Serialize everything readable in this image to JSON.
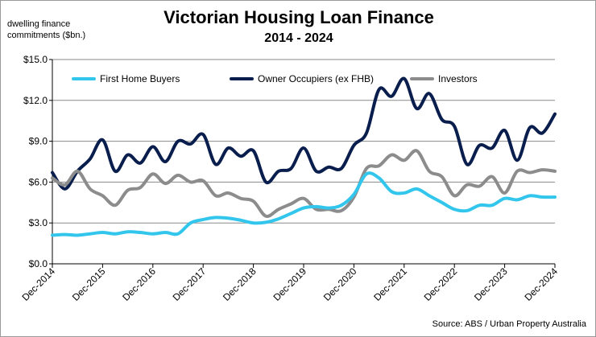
{
  "chart_data": {
    "type": "line",
    "title": "Victorian Housing Loan Finance",
    "subtitle": "2014 - 2024",
    "ylabel": "dwelling finance commitments ($bn.)",
    "xlabel": "",
    "ylim": [
      0,
      15
    ],
    "y_ticks": [
      0,
      3,
      6,
      9,
      12,
      15
    ],
    "y_tick_labels": [
      "$0.0",
      "$3.0",
      "$6.0",
      "$9.0",
      "$12.0",
      "$15.0"
    ],
    "x_ticks": [
      "Dec-2014",
      "Dec-2015",
      "Dec-2016",
      "Dec-2017",
      "Dec-2018",
      "Dec-2019",
      "Dec-2020",
      "Dec-2021",
      "Dec-2022",
      "Dec-2023",
      "Dec-2024"
    ],
    "x_unit": "quarters from Dec-2014",
    "grid": true,
    "legend": "top-left, inside plot",
    "series": [
      {
        "name": "First Home Buyers",
        "color": "#33C6EC",
        "values": [
          2.1,
          2.15,
          2.1,
          2.2,
          2.3,
          2.2,
          2.35,
          2.3,
          2.2,
          2.3,
          2.2,
          3.0,
          3.25,
          3.4,
          3.35,
          3.2,
          3.0,
          3.05,
          3.3,
          3.7,
          4.1,
          4.2,
          4.1,
          4.3,
          5.1,
          6.6,
          6.3,
          5.3,
          5.2,
          5.5,
          5.0,
          4.5,
          4.0,
          3.9,
          4.3,
          4.3,
          4.8,
          4.7,
          5.0,
          4.9,
          4.9
        ]
      },
      {
        "name": "Owner Occupiers (ex FHB)",
        "color": "#0A1E4E",
        "values": [
          6.7,
          5.5,
          6.8,
          7.7,
          9.1,
          6.8,
          8.0,
          7.4,
          8.6,
          7.5,
          9.0,
          8.8,
          9.5,
          7.3,
          8.5,
          7.9,
          8.3,
          6.0,
          6.8,
          7.0,
          8.5,
          6.8,
          7.1,
          7.0,
          8.7,
          9.6,
          12.8,
          12.3,
          13.6,
          11.4,
          12.5,
          10.6,
          10.1,
          7.3,
          8.7,
          8.5,
          9.8,
          7.6,
          10.0,
          9.6,
          11.0
        ]
      },
      {
        "name": "Investors",
        "color": "#8C8C8C",
        "values": [
          6.3,
          5.8,
          6.8,
          5.5,
          5.0,
          4.3,
          5.4,
          5.6,
          6.6,
          5.9,
          6.5,
          6.0,
          6.1,
          5.0,
          5.2,
          4.8,
          4.6,
          3.5,
          4.0,
          4.4,
          4.8,
          4.0,
          4.0,
          3.9,
          4.9,
          7.0,
          7.2,
          8.0,
          7.6,
          8.3,
          6.8,
          6.4,
          5.0,
          5.8,
          5.7,
          6.4,
          5.2,
          6.8,
          6.7,
          6.9,
          6.8
        ]
      }
    ],
    "source": "Source: ABS / Urban Property Australia"
  }
}
